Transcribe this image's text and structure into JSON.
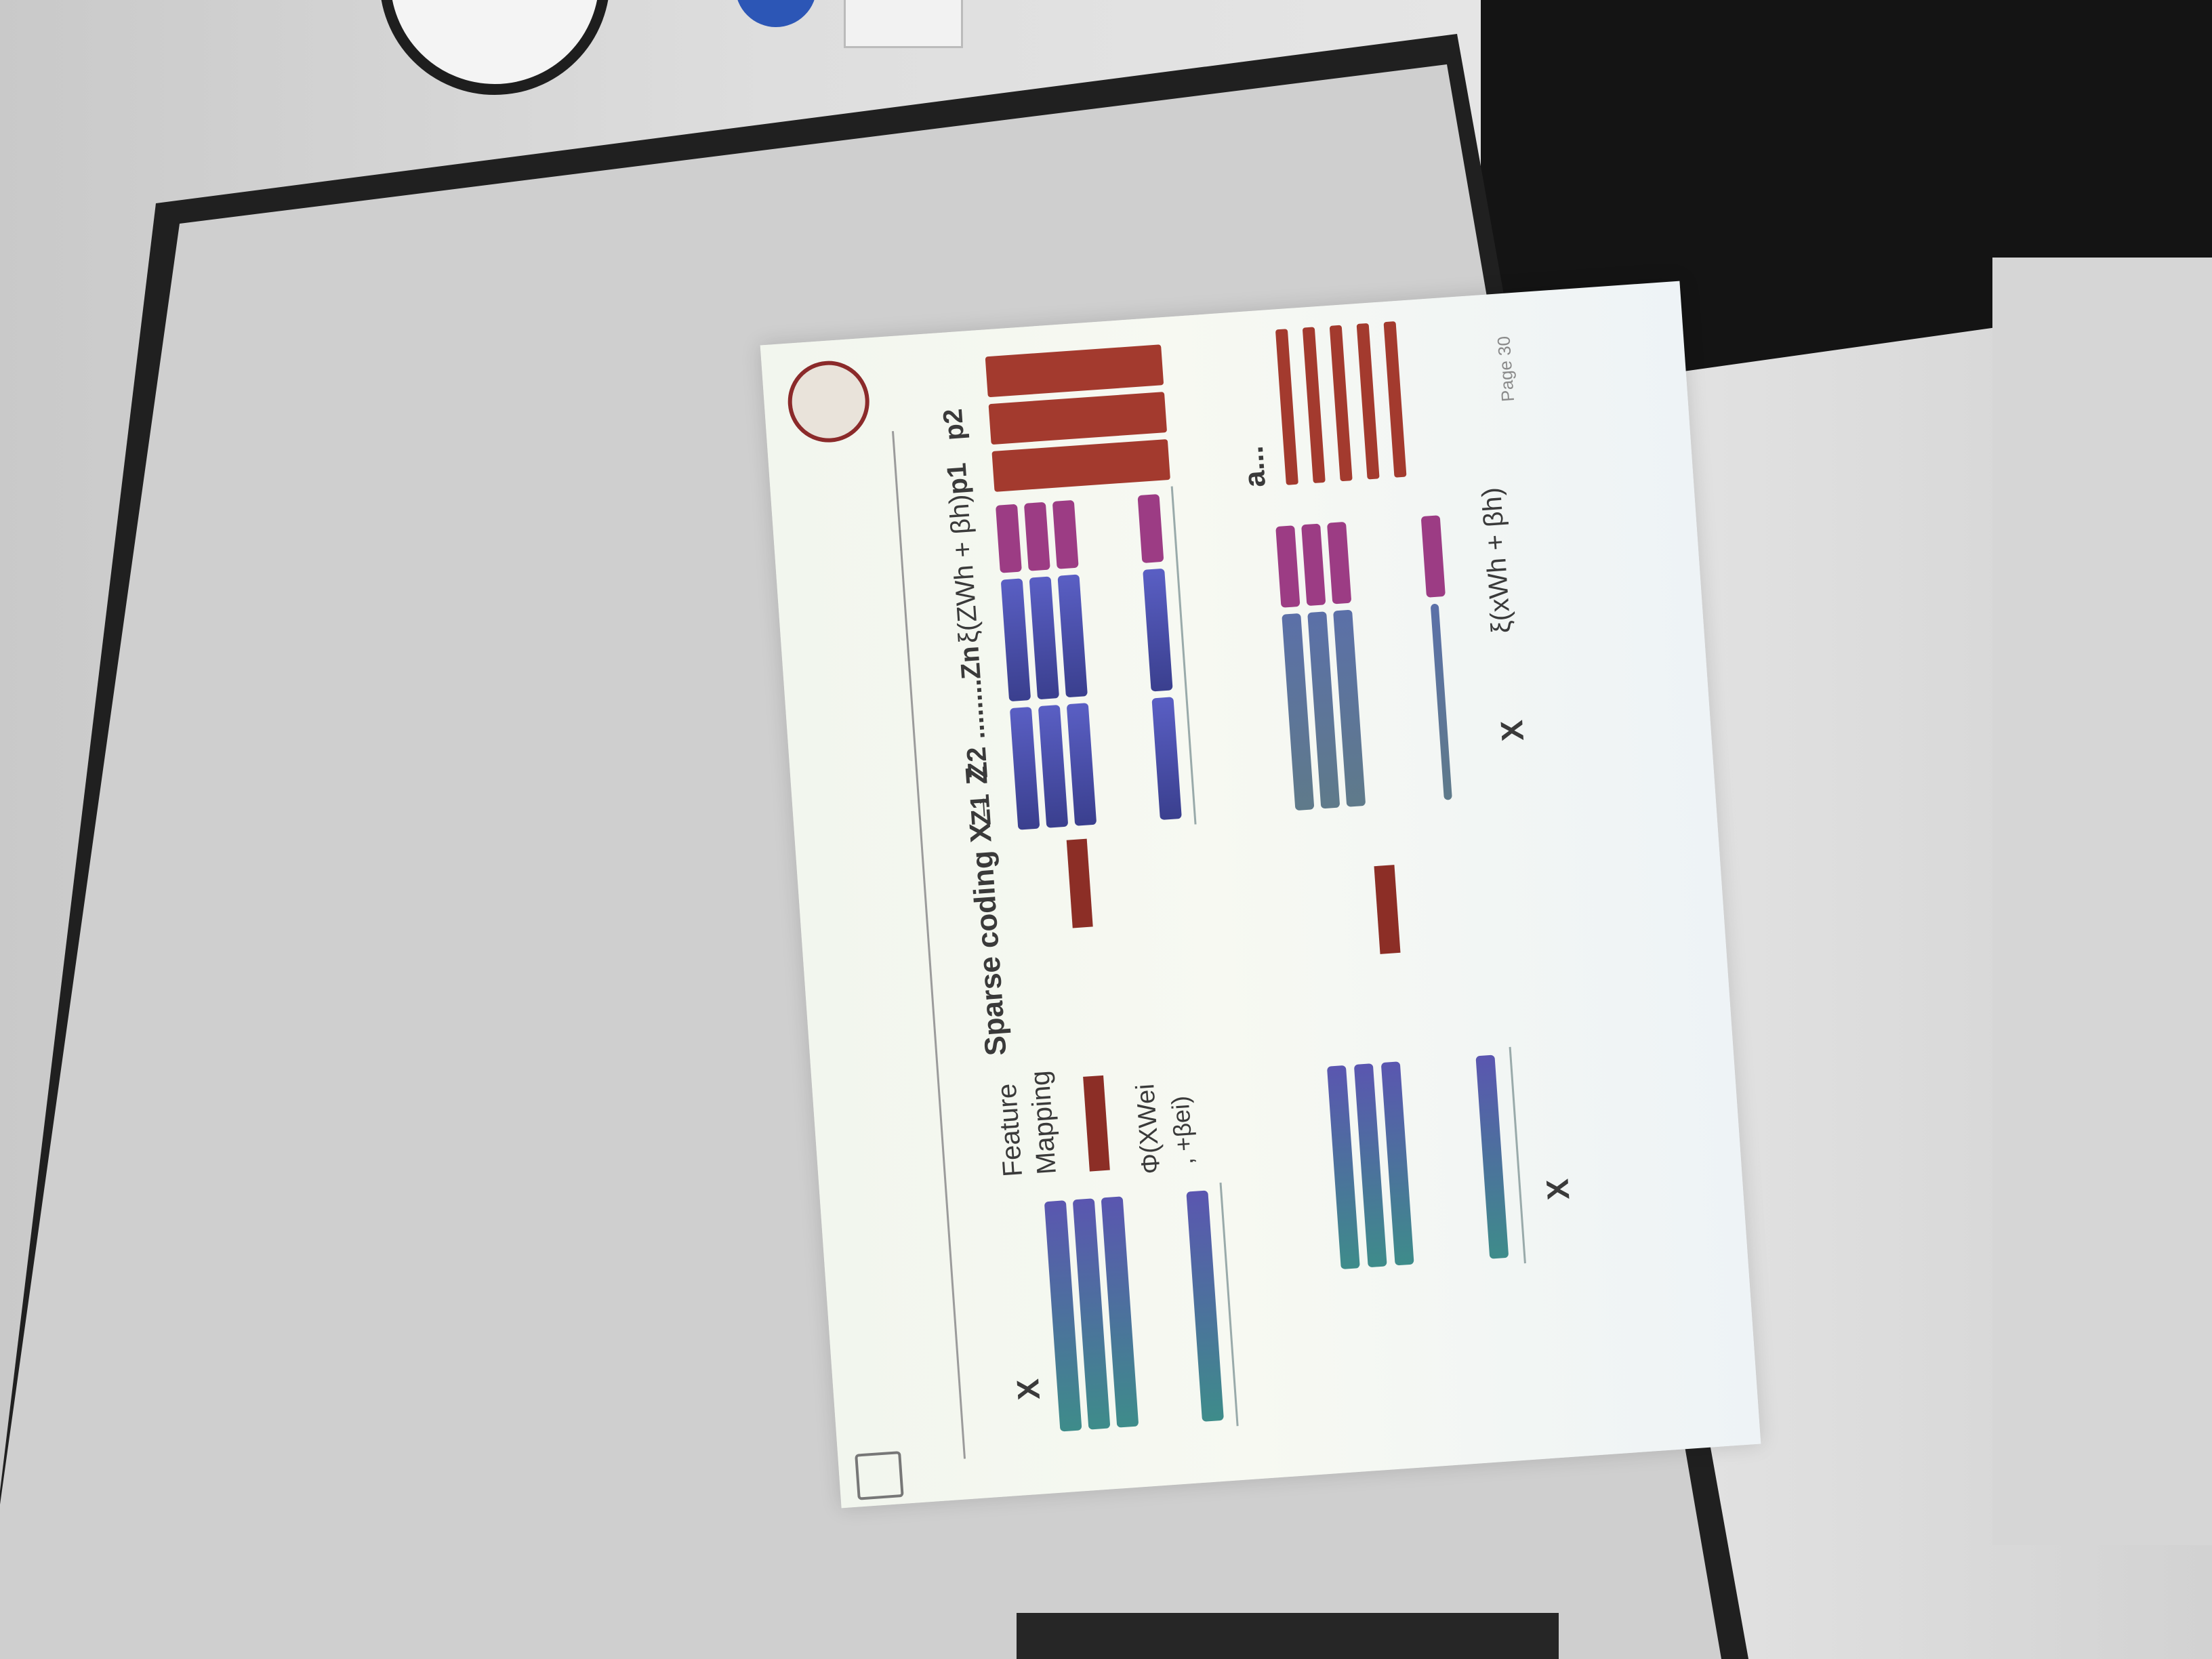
{
  "slide": {
    "top_left": {
      "x_label": "X",
      "feature_label_line1": "Feature",
      "feature_label_line2": "Mapping",
      "phi_formula": "Φ(XWei",
      "phi_formula_2": ", +βei)",
      "sparse_coding": "Sparse coding X→ Z"
    },
    "top_right": {
      "z1": "Z1",
      "z2_zn": "Z2 ........Zn",
      "xi_formula": "ξ(ZWh + βh)",
      "p1": "p1",
      "p2": "p2"
    },
    "bottom": {
      "a_label": "a...",
      "x_label_right": "X",
      "xi_formula_2": "ξ(xWh + βh)",
      "x_label_left": "X"
    },
    "page": "Page 30"
  },
  "colors": {
    "red": "#a33a2e",
    "magenta": "#9c3c84",
    "blue": "#4a4fae",
    "teal": "#3e8c8a"
  }
}
